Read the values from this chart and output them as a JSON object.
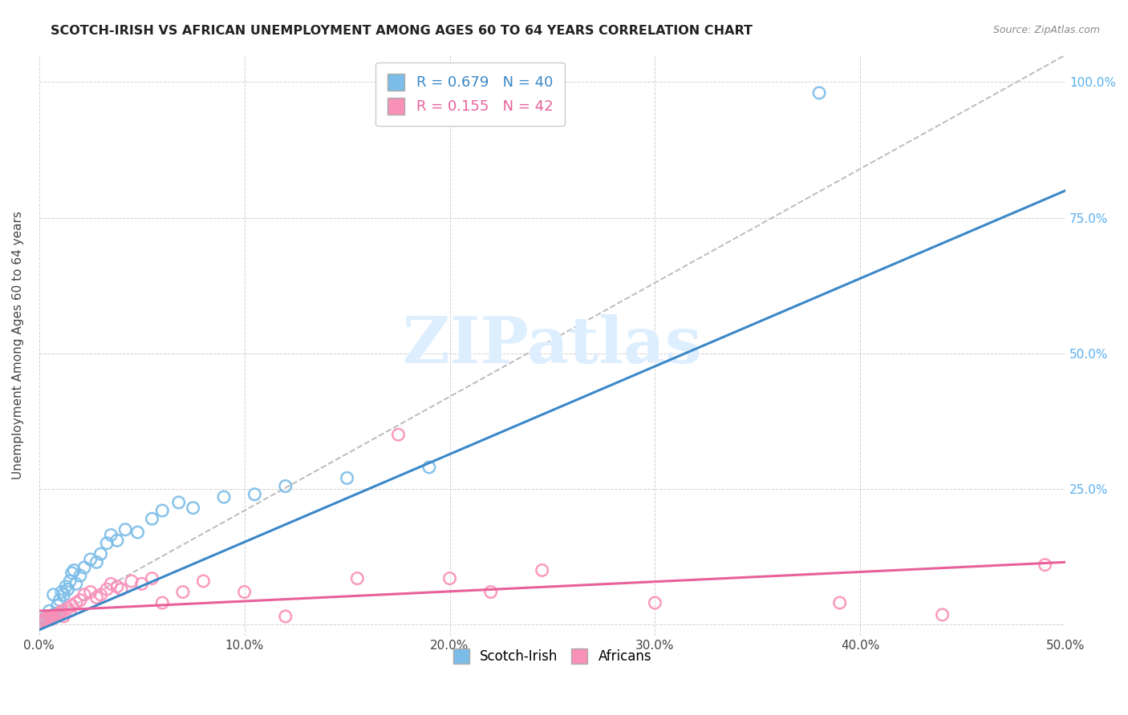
{
  "title": "SCOTCH-IRISH VS AFRICAN UNEMPLOYMENT AMONG AGES 60 TO 64 YEARS CORRELATION CHART",
  "source": "Source: ZipAtlas.com",
  "ylabel": "Unemployment Among Ages 60 to 64 years",
  "xlim": [
    0.0,
    0.5
  ],
  "ylim": [
    -0.02,
    1.05
  ],
  "yticks": [
    0.0,
    0.25,
    0.5,
    0.75,
    1.0
  ],
  "xticks": [
    0.0,
    0.1,
    0.2,
    0.3,
    0.4,
    0.5
  ],
  "xticklabels": [
    "0.0%",
    "10.0%",
    "20.0%",
    "30.0%",
    "40.0%",
    "50.0%"
  ],
  "right_yticklabels": [
    "",
    "25.0%",
    "50.0%",
    "75.0%",
    "100.0%"
  ],
  "blue_R": 0.679,
  "blue_N": 40,
  "pink_R": 0.155,
  "pink_N": 42,
  "blue_color": "#7bbde8",
  "pink_color": "#f990b8",
  "blue_line_color": "#3a88c8",
  "pink_line_color": "#e8609a",
  "dashed_line_color": "#bbbbbb",
  "right_axis_color": "#5ab0f0",
  "watermark": "ZIPatlas",
  "watermark_color": "#ddeeff",
  "blue_scatter_x": [
    0.001,
    0.002,
    0.003,
    0.004,
    0.005,
    0.005,
    0.006,
    0.007,
    0.007,
    0.008,
    0.009,
    0.01,
    0.011,
    0.012,
    0.013,
    0.014,
    0.015,
    0.016,
    0.017,
    0.018,
    0.02,
    0.022,
    0.025,
    0.028,
    0.03,
    0.033,
    0.035,
    0.038,
    0.042,
    0.048,
    0.055,
    0.06,
    0.068,
    0.075,
    0.09,
    0.105,
    0.12,
    0.15,
    0.19,
    0.38
  ],
  "blue_scatter_y": [
    0.005,
    0.01,
    0.008,
    0.01,
    0.012,
    0.025,
    0.015,
    0.018,
    0.055,
    0.02,
    0.035,
    0.045,
    0.06,
    0.055,
    0.07,
    0.065,
    0.08,
    0.095,
    0.1,
    0.075,
    0.09,
    0.105,
    0.12,
    0.115,
    0.13,
    0.15,
    0.165,
    0.155,
    0.175,
    0.17,
    0.195,
    0.21,
    0.225,
    0.215,
    0.235,
    0.24,
    0.255,
    0.27,
    0.29,
    0.98
  ],
  "pink_scatter_x": [
    0.001,
    0.002,
    0.003,
    0.004,
    0.005,
    0.006,
    0.007,
    0.008,
    0.009,
    0.01,
    0.011,
    0.012,
    0.014,
    0.015,
    0.016,
    0.018,
    0.02,
    0.022,
    0.025,
    0.028,
    0.03,
    0.033,
    0.035,
    0.038,
    0.04,
    0.045,
    0.05,
    0.055,
    0.06,
    0.07,
    0.08,
    0.1,
    0.12,
    0.155,
    0.175,
    0.2,
    0.22,
    0.245,
    0.3,
    0.39,
    0.44,
    0.49
  ],
  "pink_scatter_y": [
    0.005,
    0.008,
    0.01,
    0.012,
    0.015,
    0.01,
    0.012,
    0.015,
    0.018,
    0.02,
    0.025,
    0.015,
    0.03,
    0.025,
    0.035,
    0.04,
    0.045,
    0.055,
    0.06,
    0.05,
    0.055,
    0.065,
    0.075,
    0.07,
    0.065,
    0.08,
    0.075,
    0.085,
    0.04,
    0.06,
    0.08,
    0.06,
    0.015,
    0.085,
    0.35,
    0.085,
    0.06,
    0.1,
    0.04,
    0.04,
    0.018,
    0.11
  ],
  "blue_line_x0": 0.0,
  "blue_line_x1": 0.5,
  "blue_line_y0": -0.01,
  "blue_line_y1": 0.8,
  "pink_line_x0": 0.0,
  "pink_line_x1": 0.5,
  "pink_line_y0": 0.025,
  "pink_line_y1": 0.115,
  "dash_line_x0": 0.0,
  "dash_line_x1": 0.5,
  "dash_line_y0": 0.0,
  "dash_line_y1": 1.05
}
